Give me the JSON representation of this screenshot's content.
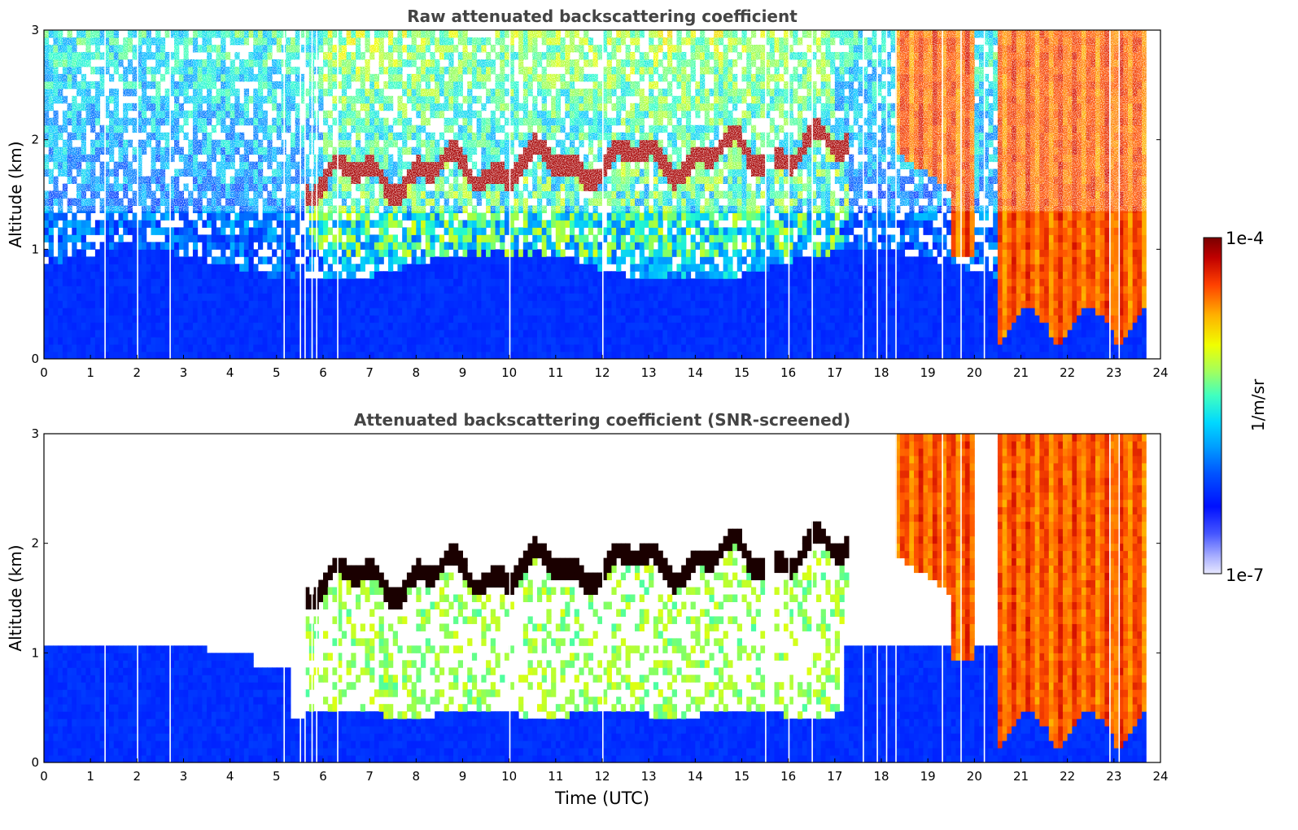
{
  "chart_data": [
    {
      "type": "heatmap",
      "title": "Raw attenuated backscattering coefficient",
      "xlabel": "",
      "ylabel": "Altitude (km)",
      "xlim": [
        0,
        24
      ],
      "ylim": [
        0,
        3
      ],
      "xticks": [
        "0",
        "1",
        "2",
        "3",
        "4",
        "5",
        "6",
        "7",
        "8",
        "9",
        "10",
        "11",
        "12",
        "13",
        "14",
        "15",
        "16",
        "17",
        "18",
        "19",
        "20",
        "21",
        "22",
        "23",
        "24"
      ],
      "yticks": [
        "0",
        "1",
        "2",
        "3"
      ],
      "grid": false,
      "features": [
        {
          "name": "aerosol boundary layer",
          "t_start": 0,
          "t_end": 23.7,
          "alt_top_km": 1.0
        },
        {
          "name": "cloud layer",
          "t_start": 5.3,
          "t_end": 17.3,
          "alt_km": [
            1.3,
            2.3
          ]
        },
        {
          "name": "precipitation",
          "t_start": 18.3,
          "t_end": 23.7,
          "alt_km": [
            0.1,
            3.0
          ]
        }
      ]
    },
    {
      "type": "heatmap",
      "title": "Attenuated backscattering coefficient (SNR-screened)",
      "xlabel": "Time (UTC)",
      "ylabel": "Altitude (km)",
      "xlim": [
        0,
        24
      ],
      "ylim": [
        0,
        3
      ],
      "xticks": [
        "0",
        "1",
        "2",
        "3",
        "4",
        "5",
        "6",
        "7",
        "8",
        "9",
        "10",
        "11",
        "12",
        "13",
        "14",
        "15",
        "16",
        "17",
        "18",
        "19",
        "20",
        "21",
        "22",
        "23",
        "24"
      ],
      "yticks": [
        "0",
        "1",
        "2",
        "3"
      ],
      "grid": false
    }
  ],
  "colorbar": {
    "label": "1/m/sr",
    "min_label": "1e-7",
    "max_label": "1e-4",
    "scale": "log",
    "colors": [
      "#e8e8ff",
      "#aab0ff",
      "#4455ff",
      "#0010ff",
      "#0055ff",
      "#00a0ff",
      "#00d8ff",
      "#40ffc0",
      "#a0ff60",
      "#f0ff00",
      "#ffb000",
      "#ff4000",
      "#c00000",
      "#7a0000"
    ]
  }
}
